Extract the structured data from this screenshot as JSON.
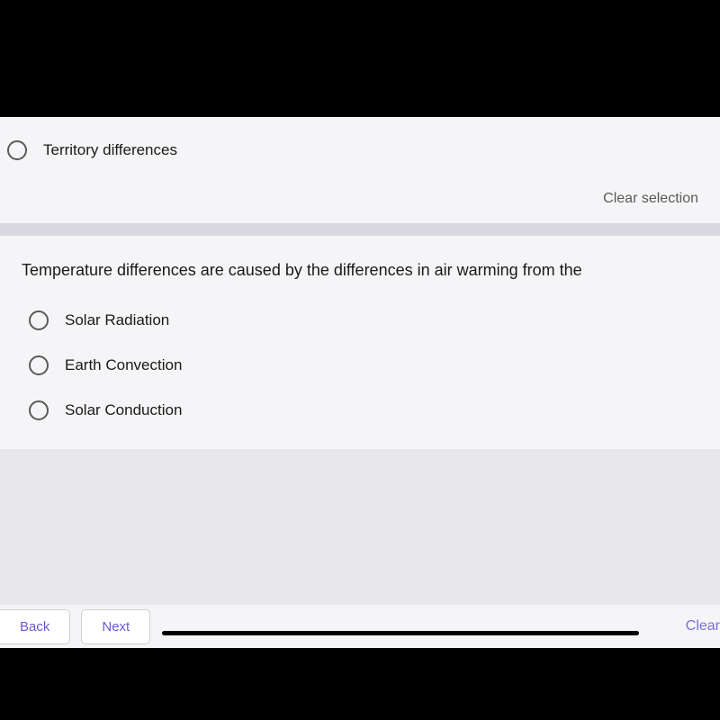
{
  "previousQuestion": {
    "visibleOption": "Territory differences",
    "clearSelectionLabel": "Clear selection"
  },
  "currentQuestion": {
    "prompt": "Temperature differences are caused by the differences in air warming from the",
    "options": [
      "Solar Radiation",
      "Earth Convection",
      "Solar Conduction"
    ]
  },
  "navigation": {
    "backLabel": "Back",
    "nextLabel": "Next",
    "clearLabel": "Clear"
  },
  "colors": {
    "background": "#000000",
    "cardBackground": "#f5f5f7",
    "dividerBackground": "#d8d8de",
    "textPrimary": "#1a1a1a",
    "textSecondary": "#5a5a5a",
    "accentPurple": "#6a5acd",
    "radioBorder": "#5a5a5a"
  },
  "typography": {
    "questionFontSize": 18,
    "optionFontSize": 17,
    "navFontSize": 15,
    "clearFontSize": 16
  }
}
